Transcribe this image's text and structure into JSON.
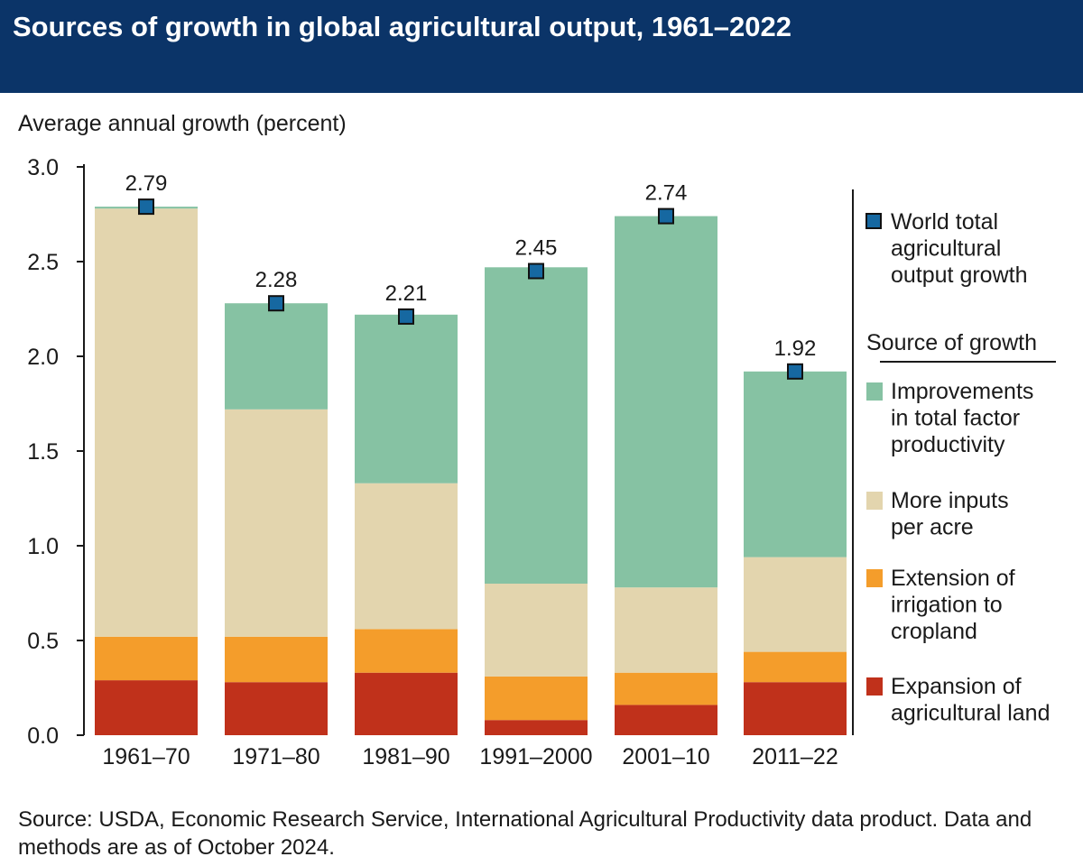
{
  "header": {
    "title": "Sources of growth in global agricultural output, 1961–2022"
  },
  "footer": {
    "source": "Source: USDA, Economic Research Service, International Agricultural Productivity data product. Data and methods are as of October 2024."
  },
  "colors": {
    "title_bar": "#0b3468",
    "tfp": "#86c2a3",
    "inputs": "#e3d5ae",
    "irrigation": "#f49d2b",
    "land": "#c0311b",
    "total_marker": "#1668a1"
  },
  "chart_data": {
    "type": "bar",
    "stacked": true,
    "ylabel": "Average annual growth (percent)",
    "ylim": [
      0,
      3.0
    ],
    "yticks": [
      "0.0",
      "0.5",
      "1.0",
      "1.5",
      "2.0",
      "2.5",
      "3.0"
    ],
    "grid": false,
    "categories": [
      "1961–70",
      "1971–80",
      "1981–90",
      "1991–2000",
      "2001–10",
      "2011–22"
    ],
    "series": [
      {
        "name": "Expansion of agricultural land",
        "key": "land",
        "values": [
          0.29,
          0.28,
          0.33,
          0.08,
          0.16,
          0.28
        ]
      },
      {
        "name": "Extension of irrigation to cropland",
        "key": "irrigation",
        "values": [
          0.23,
          0.24,
          0.23,
          0.23,
          0.17,
          0.16
        ]
      },
      {
        "name": "More inputs per acre",
        "key": "inputs",
        "values": [
          2.26,
          1.2,
          0.77,
          0.49,
          0.45,
          0.5
        ]
      },
      {
        "name": "Improvements in total factor productivity",
        "key": "tfp",
        "values": [
          0.01,
          0.56,
          0.89,
          1.67,
          1.96,
          0.98
        ]
      }
    ],
    "totals": {
      "name": "World total agricultural output growth",
      "values": [
        2.79,
        2.28,
        2.21,
        2.45,
        2.74,
        1.92
      ],
      "labels": [
        "2.79",
        "2.28",
        "2.21",
        "2.45",
        "2.74",
        "1.92"
      ]
    },
    "legend": {
      "placement": "right",
      "total_label": "World total agricultural output growth",
      "total_label_lines": [
        "World total",
        "agricultural",
        "output growth"
      ],
      "heading": "Source of growth",
      "items": [
        {
          "key": "tfp",
          "lines": [
            "Improvements",
            "in total factor",
            "productivity"
          ]
        },
        {
          "key": "inputs",
          "lines": [
            "More inputs",
            "per acre"
          ]
        },
        {
          "key": "irrigation",
          "lines": [
            "Extension of",
            "irrigation to",
            "cropland"
          ]
        },
        {
          "key": "land",
          "lines": [
            "Expansion of",
            "agricultural land"
          ]
        }
      ]
    }
  }
}
